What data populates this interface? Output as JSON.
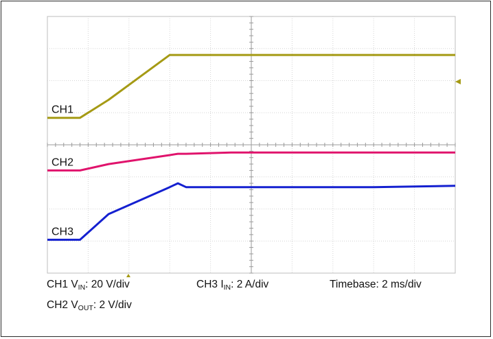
{
  "chart_data": {
    "type": "line",
    "grid": true,
    "x": [
      0,
      0.8,
      1.5,
      3.0,
      3.2,
      3.4,
      4.5,
      6.0,
      8.0,
      10.0
    ],
    "series": [
      {
        "name": "CH1",
        "color": "#a59a14",
        "values": [
          -0.45,
          -0.45,
          0.25,
          2.0,
          2.0,
          2.0,
          2.0,
          2.0,
          2.0,
          2.0
        ]
      },
      {
        "name": "CH2",
        "color": "#e0136c",
        "values": [
          -2.5,
          -2.5,
          -2.25,
          -1.9,
          -1.85,
          -1.85,
          -1.8,
          -1.8,
          -1.8,
          -1.8
        ]
      },
      {
        "name": "CH3",
        "color": "#1420d0",
        "values": [
          -5.2,
          -5.2,
          -4.2,
          -3.15,
          -3.0,
          -3.15,
          -3.15,
          -3.15,
          -3.15,
          -3.1
        ]
      }
    ],
    "xlim": [
      0,
      10
    ],
    "ylim": [
      -6.5,
      3.5
    ],
    "captions": {
      "ch1": {
        "pre": "CH1 V",
        "sub": "IN",
        "post": ": 20 V/div"
      },
      "ch3": {
        "pre": "CH3 I",
        "sub": "IN",
        "post": ": 2 A/div"
      },
      "timebase": "Timebase: 2 ms/div",
      "ch2": {
        "pre": "CH2 V",
        "sub": "OUT",
        "post": ": 2 V/div"
      }
    }
  }
}
